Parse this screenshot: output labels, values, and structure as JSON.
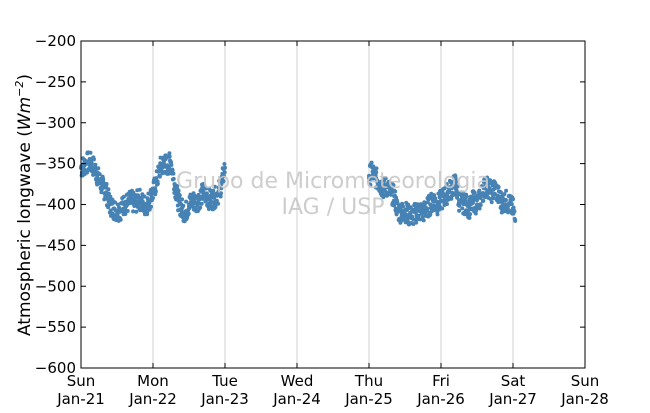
{
  "chart_data": {
    "type": "scatter",
    "title": "",
    "xlabel": "",
    "ylabel": "Atmospheric longwave (Wm⁻²)",
    "ylabel_text": "Atmospheric longwave (",
    "ylabel_units_base": "Wm",
    "ylabel_units_exp": "−2",
    "ylabel_units_close": ")",
    "ylim": [
      -600,
      -200
    ],
    "yticks": [
      -200,
      -250,
      -300,
      -350,
      -400,
      -450,
      -500,
      -550,
      -600
    ],
    "ytick_labels": [
      "−200",
      "−250",
      "−300",
      "−350",
      "−400",
      "−450",
      "−500",
      "−550",
      "−600"
    ],
    "xlim_days": [
      0,
      7
    ],
    "xticks": [
      {
        "day": 0,
        "line1": "Sun",
        "line2": "Jan-21"
      },
      {
        "day": 1,
        "line1": "Mon",
        "line2": "Jan-22"
      },
      {
        "day": 2,
        "line1": "Tue",
        "line2": "Jan-23"
      },
      {
        "day": 3,
        "line1": "Wed",
        "line2": "Jan-24"
      },
      {
        "day": 4,
        "line1": "Thu",
        "line2": "Jan-25"
      },
      {
        "day": 5,
        "line1": "Fri",
        "line2": "Jan-26"
      },
      {
        "day": 6,
        "line1": "Sat",
        "line2": "Jan-27"
      },
      {
        "day": 7,
        "line1": "Sun",
        "line2": "Jan-28"
      }
    ],
    "grid": "vertical",
    "marker_color": "#4682b4",
    "segments": [
      {
        "start_day": 0.0,
        "end_day": 2.0
      },
      {
        "start_day": 4.0,
        "end_day": 6.03
      }
    ],
    "series": [
      {
        "x": [
          0.0,
          0.05,
          0.1,
          0.15,
          0.2,
          0.25,
          0.3,
          0.35,
          0.4,
          0.45,
          0.5,
          0.55,
          0.6,
          0.65,
          0.7,
          0.75,
          0.8,
          0.85,
          0.9,
          0.95,
          1.0,
          1.05,
          1.1,
          1.15,
          1.2,
          1.25,
          1.3,
          1.35,
          1.4,
          1.45,
          1.5,
          1.55,
          1.6,
          1.65,
          1.7,
          1.75,
          1.8,
          1.85,
          1.9,
          1.95,
          2.0,
          4.0,
          4.05,
          4.1,
          4.15,
          4.2,
          4.25,
          4.3,
          4.35,
          4.4,
          4.45,
          4.5,
          4.55,
          4.6,
          4.65,
          4.7,
          4.75,
          4.8,
          4.85,
          4.9,
          4.95,
          5.0,
          5.05,
          5.1,
          5.15,
          5.2,
          5.25,
          5.3,
          5.35,
          5.4,
          5.45,
          5.5,
          5.55,
          5.6,
          5.65,
          5.7,
          5.75,
          5.8,
          5.85,
          5.9,
          5.95,
          6.0,
          6.03
        ],
        "y": [
          -355,
          -352,
          -348,
          -350,
          -358,
          -370,
          -378,
          -385,
          -400,
          -405,
          -408,
          -406,
          -400,
          -398,
          -395,
          -400,
          -392,
          -398,
          -402,
          -395,
          -385,
          -372,
          -355,
          -350,
          -352,
          -348,
          -375,
          -395,
          -405,
          -410,
          -400,
          -395,
          -398,
          -392,
          -385,
          -390,
          -395,
          -392,
          -388,
          -375,
          -355,
          -365,
          -360,
          -368,
          -375,
          -380,
          -378,
          -385,
          -390,
          -408,
          -410,
          -408,
          -413,
          -415,
          -410,
          -408,
          -410,
          -405,
          -400,
          -395,
          -400,
          -395,
          -390,
          -385,
          -380,
          -375,
          -395,
          -398,
          -400,
          -405,
          -395,
          -400,
          -392,
          -380,
          -378,
          -385,
          -380,
          -390,
          -398,
          -395,
          -400,
          -405,
          -420
        ]
      }
    ]
  },
  "watermark": {
    "line1": "Grupo de Micrometeorologia",
    "line2": "IAG / USP"
  }
}
